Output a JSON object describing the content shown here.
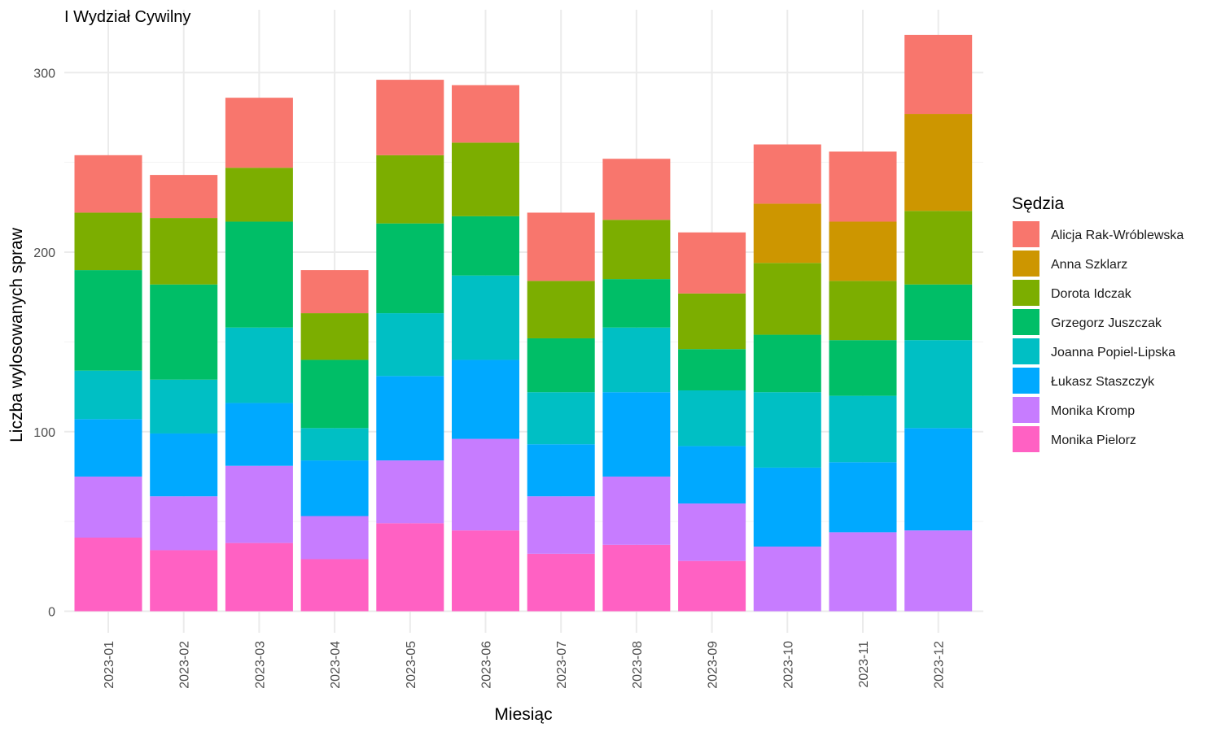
{
  "chart_data": {
    "type": "bar",
    "stacked": true,
    "title": "I Wydział Cywilny",
    "xlabel": "Miesiąc",
    "ylabel": "Liczba wylosowanych spraw",
    "ylim": [
      -12,
      335
    ],
    "yticks": [
      0,
      100,
      200,
      300
    ],
    "grid": true,
    "legend": {
      "title": "Sędzia",
      "position": "right"
    },
    "categories": [
      "2023-01",
      "2023-02",
      "2023-03",
      "2023-04",
      "2023-05",
      "2023-06",
      "2023-07",
      "2023-08",
      "2023-09",
      "2023-10",
      "2023-11",
      "2023-12"
    ],
    "series": [
      {
        "name": "Monika Pielorz",
        "color": "#FF61C3",
        "values": [
          41,
          34,
          38,
          29,
          49,
          45,
          32,
          37,
          28,
          0,
          0,
          0
        ]
      },
      {
        "name": "Monika Kromp",
        "color": "#C77CFF",
        "values": [
          34,
          30,
          43,
          24,
          35,
          51,
          32,
          38,
          32,
          36,
          44,
          45
        ]
      },
      {
        "name": "Łukasz Staszczyk",
        "color": "#00A9FF",
        "values": [
          32,
          35,
          35,
          31,
          47,
          44,
          29,
          47,
          32,
          44,
          39,
          57
        ]
      },
      {
        "name": "Joanna Popiel-Lipska",
        "color": "#00BFC4",
        "values": [
          27,
          30,
          42,
          18,
          35,
          47,
          29,
          36,
          31,
          42,
          37,
          49
        ]
      },
      {
        "name": "Grzegorz Juszczak",
        "color": "#00BE67",
        "values": [
          56,
          53,
          59,
          38,
          50,
          33,
          30,
          27,
          23,
          32,
          31,
          31
        ]
      },
      {
        "name": "Dorota Idczak",
        "color": "#7CAE00",
        "values": [
          32,
          37,
          30,
          26,
          38,
          41,
          32,
          33,
          31,
          40,
          33,
          41
        ]
      },
      {
        "name": "Anna Szklarz",
        "color": "#CD9600",
        "values": [
          0,
          0,
          0,
          0,
          0,
          0,
          0,
          0,
          0,
          33,
          33,
          54
        ]
      },
      {
        "name": "Alicja Rak-Wróblewska",
        "color": "#F8766D",
        "values": [
          32,
          24,
          39,
          24,
          42,
          32,
          38,
          34,
          34,
          33,
          39,
          44
        ]
      }
    ],
    "legend_order": [
      "Alicja Rak-Wróblewska",
      "Anna Szklarz",
      "Dorota Idczak",
      "Grzegorz Juszczak",
      "Joanna Popiel-Lipska",
      "Łukasz Staszczyk",
      "Monika Kromp",
      "Monika Pielorz"
    ]
  }
}
